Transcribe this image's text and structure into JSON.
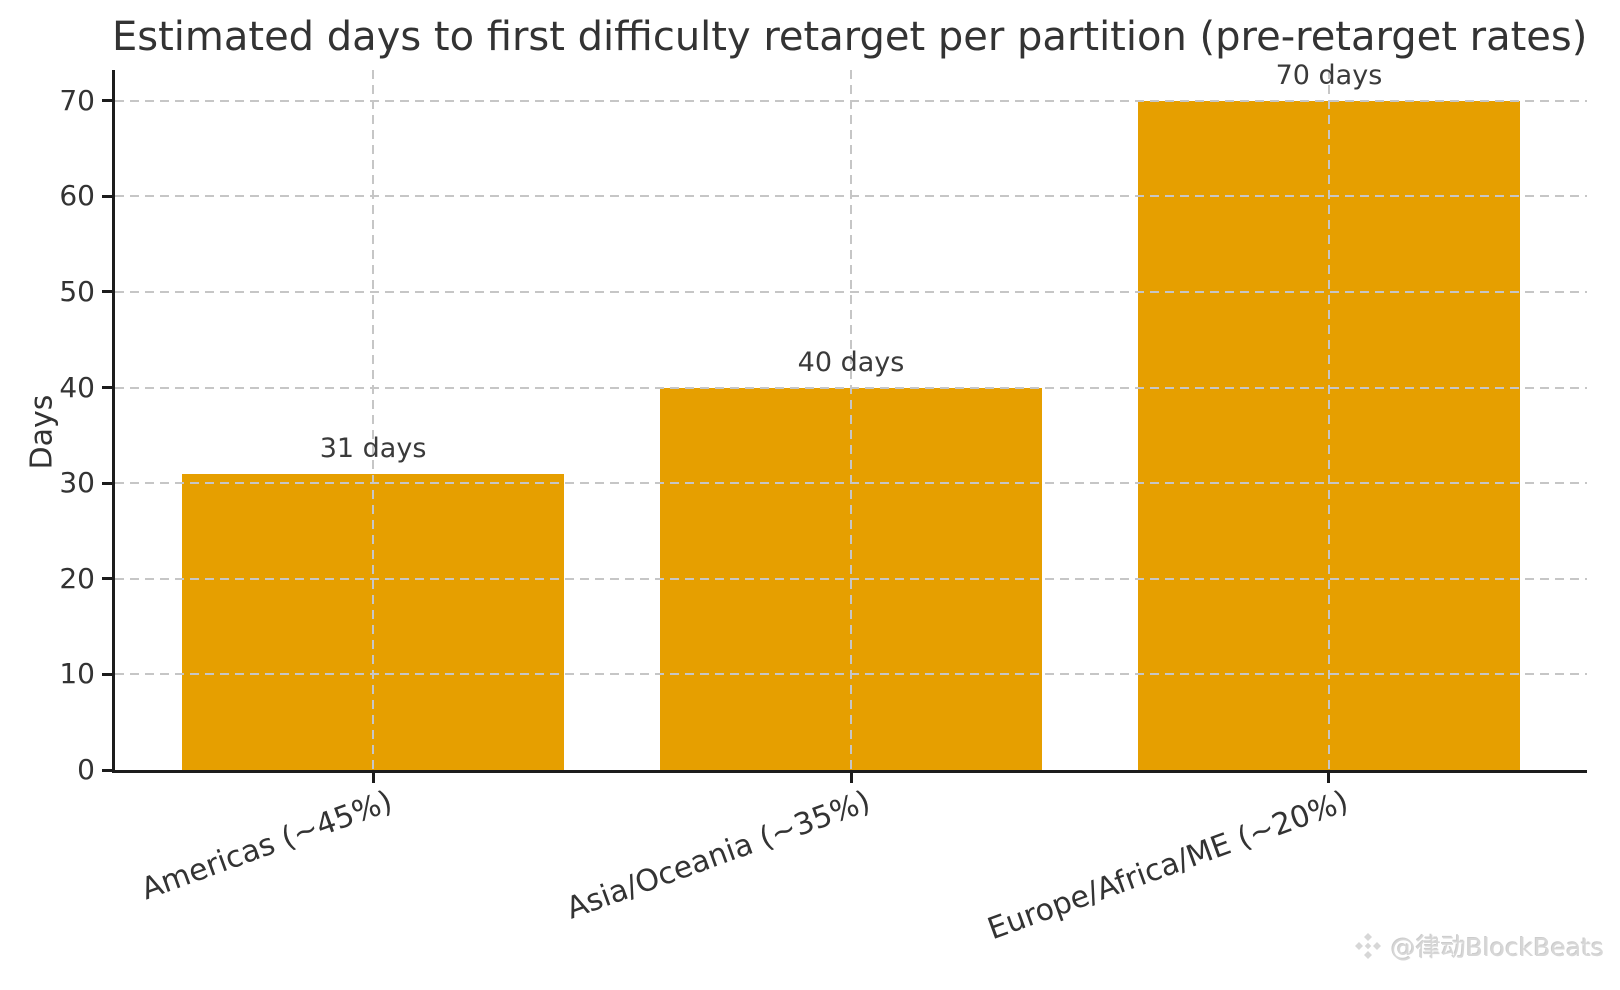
{
  "chart_data": {
    "type": "bar",
    "title": "Estimated days to first difficulty retarget per partition (pre-retarget rates)",
    "xlabel": "",
    "ylabel": "Days",
    "categories": [
      "Americas (~45%)",
      "Asia/Oceania (~35%)",
      "Europe/Africa/ME (~20%)"
    ],
    "values": [
      31,
      40,
      70
    ],
    "value_labels": [
      "31 days",
      "40 days",
      "70 days"
    ],
    "yticks": [
      0,
      10,
      20,
      30,
      40,
      50,
      60,
      70
    ],
    "ylim": [
      0,
      73.2
    ],
    "bar_color": "#E69F00",
    "grid": "dashed-horizontal-and-vertical",
    "grid_color": "#c6c6c6",
    "axis_color": "#1c1c1c",
    "text_color": "#333333",
    "legend": "none"
  },
  "watermark": {
    "text": "@律动BlockBeats",
    "icon": "blockbeats-diamond-logo"
  }
}
